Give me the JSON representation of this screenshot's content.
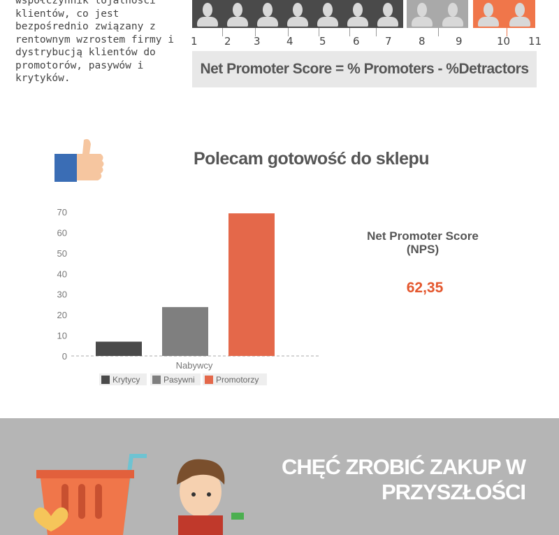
{
  "intro_text": "współczynnik lojalności\nklientów, co jest\nbezpośrednio związany z\nrentownym wzrostem firmy i\ndystrybucją klientów do\npromotorów, pasywów i\nkrytyków.",
  "scale_labels": [
    "1",
    "2",
    "3",
    "4",
    "5",
    "6",
    "7",
    "8",
    "9",
    "10",
    "11"
  ],
  "formula": "Net Promoter Score  =  % Promoters - %Detractors",
  "colors": {
    "detractors": "#4a4a4a",
    "passives": "#a9a9a9",
    "promoters": "#f0764a",
    "promoters_bar": "#e4684a"
  },
  "chart_data": {
    "type": "bar",
    "title": "Polecam gotowość do sklepu",
    "xlabel": "Nabywcy",
    "categories": [
      "Nabywcy"
    ],
    "series": [
      {
        "name": "Krytycy",
        "values": [
          6.95
        ]
      },
      {
        "name": "Pasywni",
        "values": [
          23.75
        ]
      },
      {
        "name": "Promotorzy",
        "values": [
          69.3
        ]
      }
    ],
    "ylim": [
      0,
      70
    ],
    "yticks": [
      "0",
      "10",
      "20",
      "30",
      "40",
      "50",
      "60",
      "70"
    ],
    "legend": "bottom"
  },
  "nps": {
    "label": "Net Promoter Score\n(NPS)",
    "value": "62,35"
  },
  "section2": {
    "heading": "CHĘĆ ZROBIĆ ZAKUP W\nPRZYSZŁOŚCI"
  }
}
